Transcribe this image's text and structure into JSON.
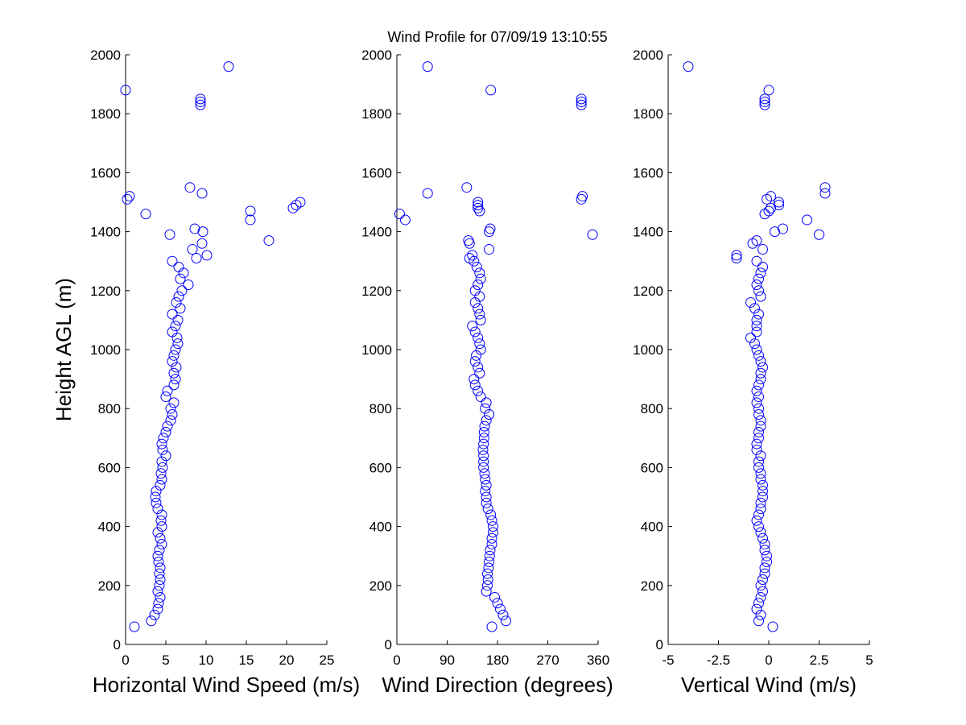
{
  "chart_data": [
    {
      "type": "scatter",
      "title": "Wind Profile for  07/09/19 13:10:55",
      "xlabel": "Horizontal Wind Speed (m/s)",
      "ylabel": "Height AGL (m)",
      "color": "#0000ff",
      "xlim": [
        0,
        25
      ],
      "xticks": [
        0,
        5,
        10,
        15,
        20,
        25
      ],
      "ylim": [
        0,
        2000
      ],
      "yticks": [
        0,
        200,
        400,
        600,
        800,
        1000,
        1200,
        1400,
        1600,
        1800,
        2000
      ],
      "x": [
        1.1,
        3.2,
        3.6,
        4.0,
        4.1,
        4.3,
        4.0,
        4.2,
        4.3,
        4.2,
        4.3,
        4.1,
        4.0,
        4.2,
        4.5,
        4.3,
        4.0,
        4.5,
        4.4,
        4.5,
        4.0,
        3.8,
        3.7,
        3.8,
        4.3,
        4.5,
        4.4,
        4.6,
        4.5,
        5.0,
        4.6,
        4.5,
        4.7,
        5.0,
        5.2,
        5.6,
        5.8,
        5.6,
        6.0,
        5.0,
        5.2,
        6.0,
        6.2,
        6.0,
        6.3,
        5.8,
        6.0,
        6.2,
        6.5,
        6.4,
        5.8,
        6.2,
        6.5,
        5.8,
        6.8,
        6.3,
        6.6,
        7.0,
        7.8,
        6.8,
        7.2,
        6.6,
        5.8,
        8.8,
        10.1,
        8.3,
        9.5,
        17.8,
        5.5,
        9.6,
        8.6,
        15.5,
        2.5,
        15.5,
        20.8,
        21.2,
        21.7,
        0.2,
        0.5,
        9.5,
        8.0,
        9.3,
        9.3,
        9.3,
        0,
        12.8
      ],
      "y": [
        60,
        80,
        100,
        120,
        140,
        160,
        180,
        200,
        220,
        240,
        260,
        280,
        300,
        320,
        340,
        360,
        380,
        400,
        420,
        440,
        460,
        480,
        500,
        520,
        540,
        560,
        580,
        600,
        620,
        640,
        660,
        680,
        700,
        720,
        740,
        760,
        780,
        800,
        820,
        840,
        860,
        880,
        900,
        920,
        940,
        960,
        980,
        1000,
        1020,
        1040,
        1060,
        1080,
        1100,
        1120,
        1140,
        1160,
        1180,
        1200,
        1220,
        1240,
        1260,
        1280,
        1300,
        1310,
        1320,
        1340,
        1360,
        1370,
        1390,
        1400,
        1410,
        1440,
        1460,
        1470,
        1480,
        1490,
        1500,
        1510,
        1520,
        1530,
        1550,
        1830,
        1840,
        1850,
        1880,
        1960
      ]
    },
    {
      "type": "scatter",
      "xlabel": "Wind Direction (degrees)",
      "color": "#0000ff",
      "xlim": [
        0,
        360
      ],
      "xticks": [
        0,
        90,
        180,
        270,
        360
      ],
      "ylim": [
        0,
        2000
      ],
      "yticks": [
        0,
        200,
        400,
        600,
        800,
        1000,
        1200,
        1400,
        1600,
        1800,
        2000
      ],
      "x": [
        170,
        195,
        190,
        185,
        180,
        175,
        160,
        162,
        163,
        162,
        164,
        165,
        166,
        167,
        170,
        170,
        172,
        172,
        170,
        168,
        163,
        160,
        160,
        158,
        160,
        158,
        157,
        155,
        155,
        155,
        154,
        155,
        156,
        156,
        157,
        160,
        165,
        158,
        160,
        150,
        145,
        140,
        138,
        148,
        145,
        140,
        142,
        150,
        148,
        145,
        140,
        135,
        150,
        148,
        145,
        140,
        148,
        140,
        145,
        150,
        148,
        143,
        138,
        130,
        135,
        165,
        130,
        128,
        350,
        165,
        167,
        15,
        5,
        148,
        145,
        145,
        145,
        330,
        332,
        55,
        125,
        330,
        330,
        330,
        168,
        55
      ],
      "y": [
        60,
        80,
        100,
        120,
        140,
        160,
        180,
        200,
        220,
        240,
        260,
        280,
        300,
        320,
        340,
        360,
        380,
        400,
        420,
        440,
        460,
        480,
        500,
        520,
        540,
        560,
        580,
        600,
        620,
        640,
        660,
        680,
        700,
        720,
        740,
        760,
        780,
        800,
        820,
        840,
        860,
        880,
        900,
        920,
        940,
        960,
        980,
        1000,
        1020,
        1040,
        1060,
        1080,
        1100,
        1120,
        1140,
        1160,
        1180,
        1200,
        1220,
        1240,
        1260,
        1280,
        1300,
        1310,
        1320,
        1340,
        1360,
        1370,
        1390,
        1400,
        1410,
        1440,
        1460,
        1470,
        1480,
        1490,
        1500,
        1510,
        1520,
        1530,
        1550,
        1830,
        1840,
        1850,
        1880,
        1960
      ]
    },
    {
      "type": "scatter",
      "xlabel": "Vertical Wind (m/s)",
      "color": "#0000ff",
      "xlim": [
        -5,
        5
      ],
      "xticks": [
        -5,
        -2.5,
        0,
        2.5,
        5
      ],
      "ylim": [
        0,
        2000
      ],
      "yticks": [
        0,
        200,
        400,
        600,
        800,
        1000,
        1200,
        1400,
        1600,
        1800,
        2000
      ],
      "x": [
        0.2,
        -0.5,
        -0.4,
        -0.6,
        -0.5,
        -0.4,
        -0.3,
        -0.4,
        -0.3,
        -0.2,
        -0.2,
        -0.1,
        -0.1,
        -0.2,
        -0.2,
        -0.3,
        -0.4,
        -0.5,
        -0.6,
        -0.5,
        -0.4,
        -0.4,
        -0.3,
        -0.3,
        -0.3,
        -0.4,
        -0.4,
        -0.5,
        -0.5,
        -0.4,
        -0.6,
        -0.6,
        -0.5,
        -0.5,
        -0.4,
        -0.4,
        -0.5,
        -0.5,
        -0.6,
        -0.5,
        -0.6,
        -0.5,
        -0.4,
        -0.4,
        -0.3,
        -0.4,
        -0.5,
        -0.6,
        -0.7,
        -0.9,
        -0.6,
        -0.6,
        -0.6,
        -0.5,
        -0.7,
        -0.9,
        -0.4,
        -0.5,
        -0.6,
        -0.5,
        -0.4,
        -0.3,
        -0.6,
        -1.6,
        -1.6,
        -0.3,
        -0.8,
        -0.6,
        2.5,
        0.3,
        0.7,
        1.9,
        -0.2,
        0,
        0.1,
        0.5,
        0.5,
        -0.1,
        0.1,
        2.8,
        2.8,
        -0.2,
        -0.2,
        -0.2,
        0,
        -4
      ],
      "y": [
        60,
        80,
        100,
        120,
        140,
        160,
        180,
        200,
        220,
        240,
        260,
        280,
        300,
        320,
        340,
        360,
        380,
        400,
        420,
        440,
        460,
        480,
        500,
        520,
        540,
        560,
        580,
        600,
        620,
        640,
        660,
        680,
        700,
        720,
        740,
        760,
        780,
        800,
        820,
        840,
        860,
        880,
        900,
        920,
        940,
        960,
        980,
        1000,
        1020,
        1040,
        1060,
        1080,
        1100,
        1120,
        1140,
        1160,
        1180,
        1200,
        1220,
        1240,
        1260,
        1280,
        1300,
        1310,
        1320,
        1340,
        1360,
        1370,
        1390,
        1400,
        1410,
        1440,
        1460,
        1470,
        1480,
        1490,
        1500,
        1510,
        1520,
        1530,
        1550,
        1830,
        1840,
        1850,
        1880,
        1960
      ]
    }
  ]
}
